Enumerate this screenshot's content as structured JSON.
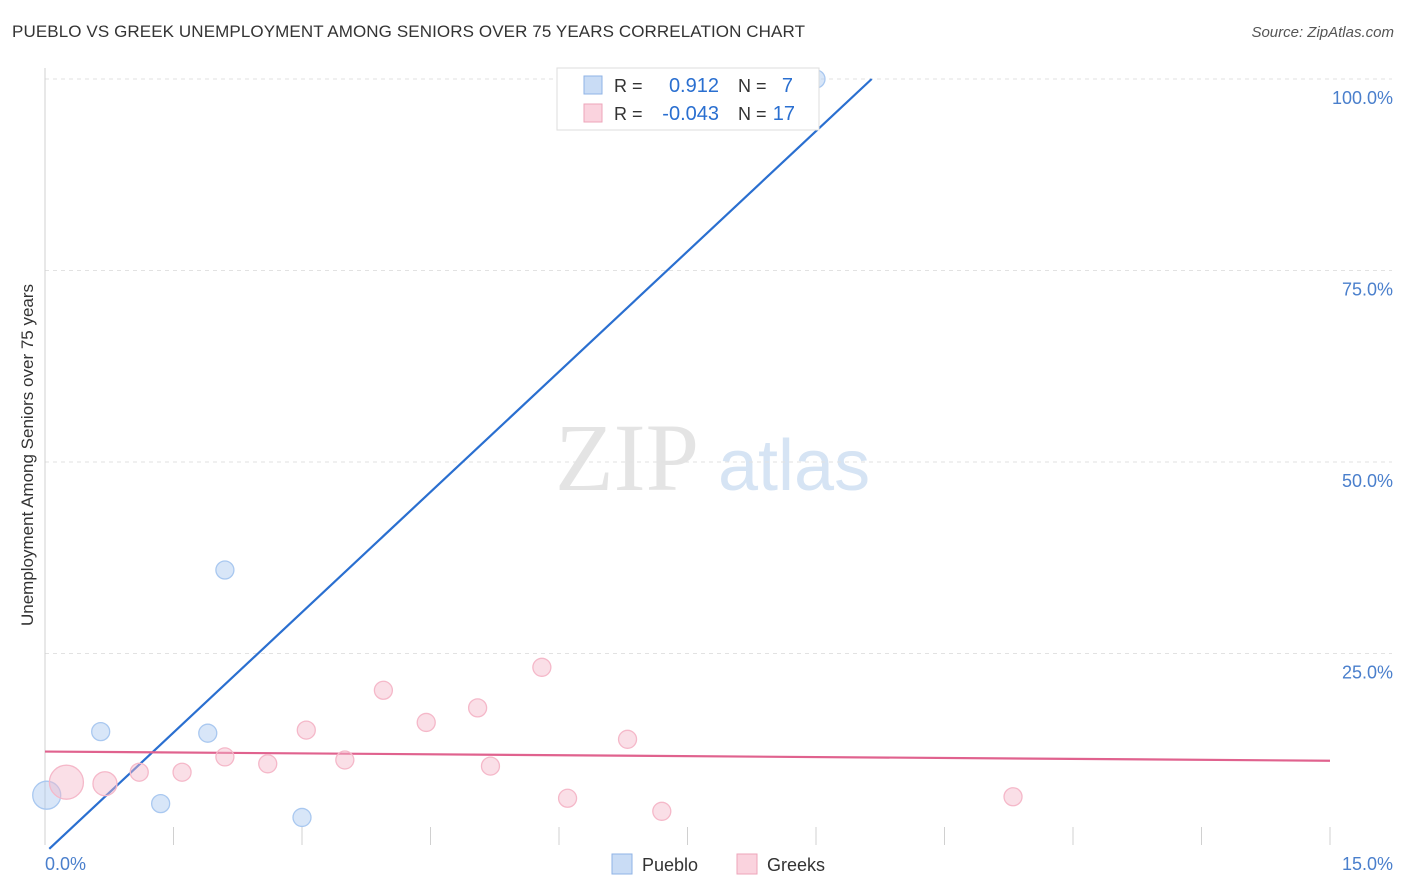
{
  "header": {
    "title": "PUEBLO VS GREEK UNEMPLOYMENT AMONG SENIORS OVER 75 YEARS CORRELATION CHART",
    "source": "Source: ZipAtlas.com"
  },
  "watermark": {
    "zip": "ZIP",
    "atlas": "atlas"
  },
  "stats": [
    {
      "r_label": "R =",
      "r_value": "0.912",
      "n_label": "N =",
      "n_value": "7",
      "color": "#a9c8f0"
    },
    {
      "r_label": "R =",
      "r_value": "-0.043",
      "n_label": "N =",
      "n_value": "17",
      "color": "#f5b8c9"
    }
  ],
  "chart_data": {
    "type": "scatter",
    "title": "PUEBLO VS GREEK UNEMPLOYMENT AMONG SENIORS OVER 75 YEARS CORRELATION CHART",
    "xlabel": "",
    "ylabel": "Unemployment Among Seniors over 75 years",
    "xlim": [
      0,
      15
    ],
    "ylim": [
      0,
      100
    ],
    "x_tick_labels": [
      "0.0%",
      "15.0%"
    ],
    "y_tick_labels": [
      "100.0%",
      "75.0%",
      "50.0%",
      "25.0%"
    ],
    "y_ticks": [
      100,
      75,
      50,
      25
    ],
    "grid": true,
    "legend_position": "bottom-center",
    "series": [
      {
        "name": "Pueblo",
        "color": "#a9c8f0",
        "line_color": "#2a6fd0",
        "points": [
          {
            "x": 0.02,
            "y": 6.5,
            "size": 14
          },
          {
            "x": 0.65,
            "y": 14.8,
            "size": 9
          },
          {
            "x": 1.35,
            "y": 5.4,
            "size": 9
          },
          {
            "x": 1.9,
            "y": 14.6,
            "size": 9
          },
          {
            "x": 2.1,
            "y": 35.9,
            "size": 9
          },
          {
            "x": 3.0,
            "y": 3.6,
            "size": 9
          },
          {
            "x": 9.0,
            "y": 100.0,
            "size": 9
          }
        ],
        "trend": {
          "x1": 0.05,
          "y1": -0.5,
          "x2": 9.65,
          "y2": 100.0
        }
      },
      {
        "name": "Greeks",
        "color": "#f5b8c9",
        "line_color": "#e0628e",
        "points": [
          {
            "x": 0.25,
            "y": 8.2,
            "size": 17
          },
          {
            "x": 0.7,
            "y": 8.0,
            "size": 12
          },
          {
            "x": 1.1,
            "y": 9.5,
            "size": 9
          },
          {
            "x": 1.6,
            "y": 9.5,
            "size": 9
          },
          {
            "x": 2.1,
            "y": 11.5,
            "size": 9
          },
          {
            "x": 2.6,
            "y": 10.6,
            "size": 9
          },
          {
            "x": 3.05,
            "y": 15.0,
            "size": 9
          },
          {
            "x": 3.5,
            "y": 11.1,
            "size": 9
          },
          {
            "x": 3.95,
            "y": 20.2,
            "size": 9
          },
          {
            "x": 4.45,
            "y": 16.0,
            "size": 9
          },
          {
            "x": 5.05,
            "y": 17.9,
            "size": 9
          },
          {
            "x": 5.2,
            "y": 10.3,
            "size": 9
          },
          {
            "x": 5.8,
            "y": 23.2,
            "size": 9
          },
          {
            "x": 6.1,
            "y": 6.1,
            "size": 9
          },
          {
            "x": 6.8,
            "y": 13.8,
            "size": 9
          },
          {
            "x": 7.2,
            "y": 4.4,
            "size": 9
          },
          {
            "x": 11.3,
            "y": 6.3,
            "size": 9
          }
        ],
        "trend": {
          "x1": 0.0,
          "y1": 12.2,
          "x2": 15.0,
          "y2": 11.0
        }
      }
    ]
  }
}
